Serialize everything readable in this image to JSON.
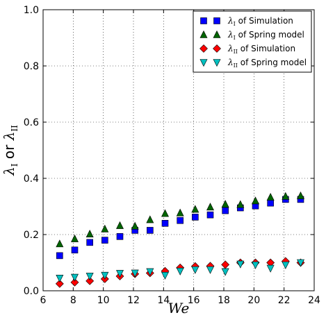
{
  "chart_data": {
    "type": "scatter",
    "xlabel": "We",
    "ylabel": "λ_I or λ_II",
    "xlim": [
      6,
      24
    ],
    "ylim": [
      0.0,
      1.0
    ],
    "x_ticks": [
      "6",
      "8",
      "10",
      "12",
      "14",
      "16",
      "18",
      "20",
      "22",
      "24"
    ],
    "y_ticks": [
      "0.0",
      "0.2",
      "0.4",
      "0.6",
      "0.8",
      "1.0"
    ],
    "grid": true,
    "legend_position": "top-right",
    "series": [
      {
        "name": "λ_I of Simulation",
        "marker": "square",
        "color": "#0000ff",
        "x": [
          7.1,
          8.1,
          9.1,
          10.1,
          11.1,
          12.1,
          13.1,
          14.1,
          15.1,
          16.1,
          17.1,
          18.1,
          19.1,
          20.1,
          21.1,
          22.1,
          23.1
        ],
        "y": [
          0.125,
          0.145,
          0.172,
          0.18,
          0.193,
          0.215,
          0.215,
          0.24,
          0.25,
          0.262,
          0.27,
          0.285,
          0.295,
          0.302,
          0.312,
          0.325,
          0.325
        ]
      },
      {
        "name": "λ_I of Spring model",
        "marker": "triangle-up",
        "color": "#006400",
        "x": [
          7.1,
          8.1,
          9.1,
          10.1,
          11.1,
          12.1,
          13.1,
          14.1,
          15.1,
          16.1,
          17.1,
          18.1,
          19.1,
          20.1,
          21.1,
          22.1,
          23.1
        ],
        "y": [
          0.167,
          0.185,
          0.202,
          0.22,
          0.232,
          0.23,
          0.253,
          0.275,
          0.277,
          0.29,
          0.298,
          0.308,
          0.307,
          0.32,
          0.333,
          0.336,
          0.338
        ]
      },
      {
        "name": "λ_II of Simulation",
        "marker": "diamond",
        "color": "#ff0000",
        "x": [
          7.1,
          8.1,
          9.1,
          10.1,
          11.1,
          12.1,
          13.1,
          14.1,
          15.1,
          16.1,
          17.1,
          18.1,
          19.1,
          20.1,
          21.1,
          22.1,
          23.1
        ],
        "y": [
          0.025,
          0.03,
          0.035,
          0.042,
          0.052,
          0.06,
          0.063,
          0.07,
          0.082,
          0.087,
          0.088,
          0.093,
          0.1,
          0.1,
          0.1,
          0.105,
          0.1
        ]
      },
      {
        "name": "λ_II of Spring model",
        "marker": "triangle-down",
        "color": "#00c0c0",
        "x": [
          7.1,
          8.1,
          9.1,
          10.1,
          11.1,
          12.1,
          13.1,
          14.1,
          15.1,
          16.1,
          17.1,
          18.1,
          19.1,
          20.1,
          21.1,
          22.1,
          23.1
        ],
        "y": [
          0.045,
          0.048,
          0.052,
          0.055,
          0.062,
          0.063,
          0.068,
          0.055,
          0.07,
          0.075,
          0.075,
          0.068,
          0.095,
          0.092,
          0.08,
          0.092,
          0.1
        ]
      }
    ]
  }
}
